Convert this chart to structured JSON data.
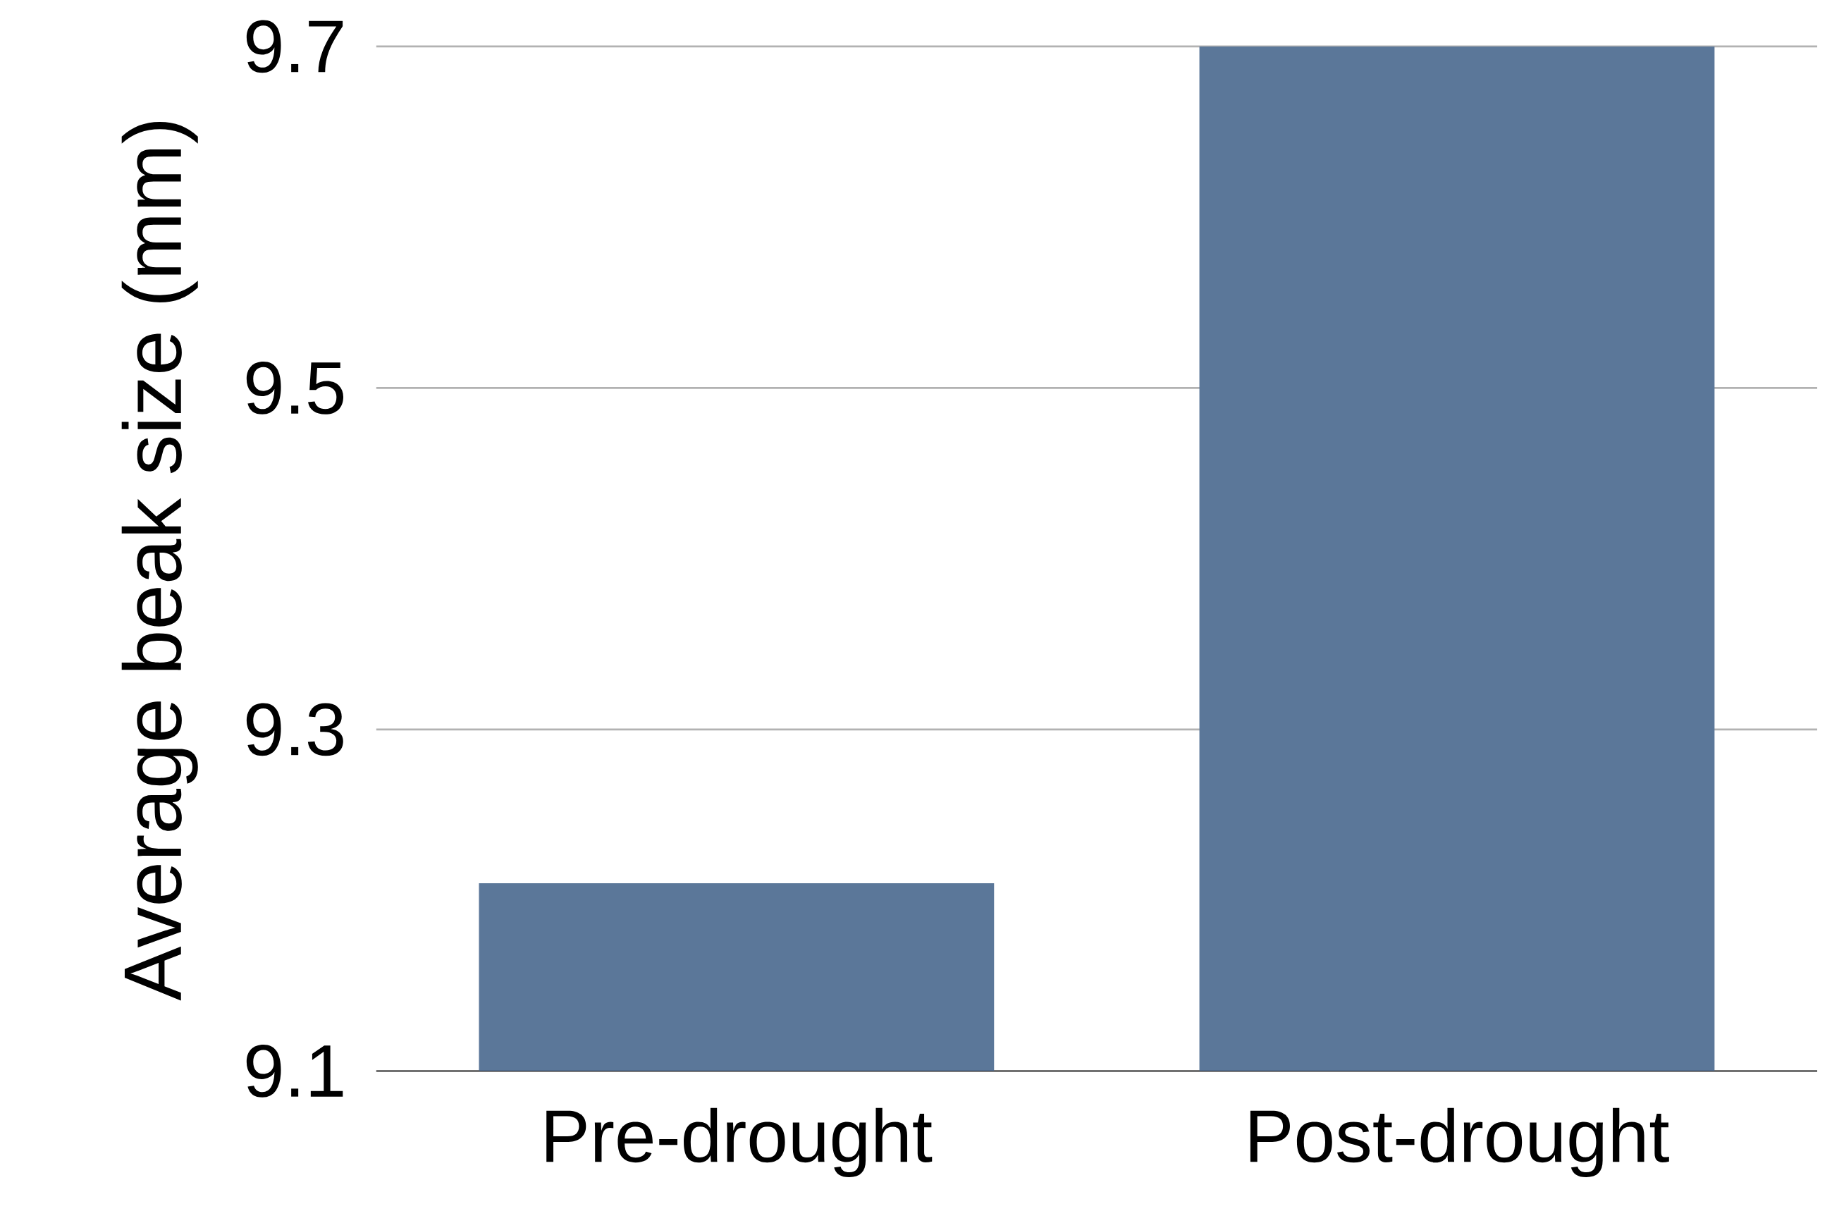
{
  "chart_data": {
    "type": "bar",
    "ylabel": "Average beak size (mm)",
    "categories": [
      "Pre-drought",
      "Post-drought"
    ],
    "values": [
      9.21,
      9.7
    ],
    "color": "#5b7799",
    "ylim": [
      9.1,
      9.7
    ],
    "yticks": [
      9.1,
      9.3,
      9.5,
      9.7
    ],
    "grid": "y"
  }
}
